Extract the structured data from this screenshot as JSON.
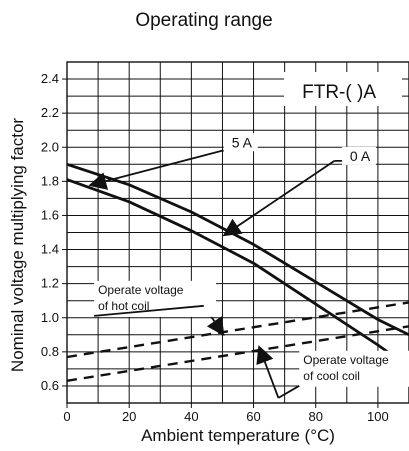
{
  "chart_data": {
    "type": "line",
    "title": "Operating range",
    "xlabel": "Ambient temperature (°C)",
    "ylabel": "Nominal voltage multiplying factor",
    "model_label": "FTR-( )A",
    "xlim": [
      0,
      110
    ],
    "ylim": [
      0.5,
      2.5
    ],
    "grid": true,
    "x_ticks": [
      "0",
      "20",
      "40",
      "60",
      "80",
      "100"
    ],
    "y_ticks": [
      "0.6",
      "0.8",
      "1.0",
      "1.2",
      "1.4",
      "1.6",
      "1.8",
      "2.0",
      "2.2",
      "2.4"
    ],
    "series": [
      {
        "name": "5 A",
        "style": "solid",
        "color": "#111111",
        "x": [
          0,
          20,
          40,
          60,
          80,
          100,
          110
        ],
        "y": [
          1.81,
          1.68,
          1.51,
          1.32,
          1.08,
          0.84,
          0.71
        ]
      },
      {
        "name": "0 A",
        "style": "solid",
        "color": "#111111",
        "x": [
          0,
          20,
          40,
          60,
          80,
          100,
          110
        ],
        "y": [
          1.9,
          1.78,
          1.62,
          1.43,
          1.21,
          0.99,
          0.9
        ]
      },
      {
        "name": "Operate voltage of hot coil",
        "style": "dashed",
        "color": "#111111",
        "x": [
          0,
          110
        ],
        "y": [
          0.77,
          1.09
        ]
      },
      {
        "name": "Operate voltage of cool coil",
        "style": "dashed",
        "color": "#111111",
        "x": [
          0,
          110
        ],
        "y": [
          0.63,
          0.95
        ]
      }
    ],
    "annotations": [
      {
        "text_lines": [
          "5 A"
        ],
        "text_x": 53,
        "text_y": 2.0,
        "arrow_from": [
          50,
          1.98
        ],
        "arrow_to": [
          8,
          1.78
        ]
      },
      {
        "text_lines": [
          "0 A"
        ],
        "text_x": 91,
        "text_y": 1.92,
        "arrow_from": [
          86,
          1.92
        ],
        "arrow_to": [
          51,
          1.49
        ]
      },
      {
        "text_lines": [
          "Operate voltage",
          "of hot coil"
        ],
        "text_x": 10,
        "text_y": 1.14,
        "arrow_from": [
          44,
          1.07
        ],
        "arrow_to": [
          50,
          0.91
        ]
      },
      {
        "text_lines": [
          "Operate voltage",
          "of cool coil"
        ],
        "text_x": 76,
        "text_y": 0.73,
        "arrow_from": [
          68,
          0.53
        ],
        "arrow_to": [
          62,
          0.82
        ]
      }
    ]
  }
}
